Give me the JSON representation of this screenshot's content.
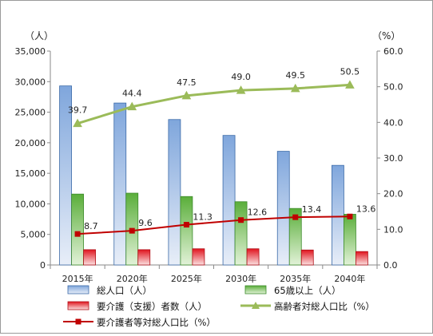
{
  "chart_data": {
    "type": "bar",
    "categories": [
      "2015年",
      "2020年",
      "2025年",
      "2030年",
      "2035年",
      "2040年"
    ],
    "left_axis": {
      "unit_label": "（人）",
      "ylim": [
        0,
        35000
      ],
      "ticks": [
        "0",
        "5,000",
        "10,000",
        "15,000",
        "20,000",
        "25,000",
        "30,000",
        "35,000"
      ]
    },
    "right_axis": {
      "unit_label": "（%）",
      "ylim": [
        0,
        60
      ],
      "ticks": [
        "0.0",
        "10.0",
        "20.0",
        "30.0",
        "40.0",
        "50.0",
        "60.0"
      ]
    },
    "grid": false,
    "legend_position": "bottom",
    "series": [
      {
        "name": "総人口（人）",
        "type": "bar",
        "axis": "left",
        "color": "#4f81bd",
        "values": [
          29300,
          26500,
          23800,
          21200,
          18600,
          16300
        ]
      },
      {
        "name": "65歳以上（人）",
        "type": "bar",
        "axis": "left",
        "color": "#4ea72e",
        "values": [
          11600,
          11750,
          11200,
          10350,
          9250,
          8300
        ]
      },
      {
        "name": "要介護（支援）者数（人）",
        "type": "bar",
        "axis": "left",
        "color": "#e0141e",
        "values": [
          2500,
          2500,
          2650,
          2650,
          2450,
          2200
        ]
      },
      {
        "name": "高齢者対総人口比（%）",
        "type": "line",
        "axis": "right",
        "color": "#9bbb59",
        "marker": "triangle",
        "values": [
          39.7,
          44.4,
          47.5,
          49.0,
          49.5,
          50.5
        ],
        "labels": [
          "39.7",
          "44.4",
          "47.5",
          "49.0",
          "49.5",
          "50.5"
        ]
      },
      {
        "name": "要介護者等対総人口比（%）",
        "type": "line",
        "axis": "right",
        "color": "#c00000",
        "marker": "square",
        "values": [
          8.7,
          9.6,
          11.3,
          12.6,
          13.4,
          13.6
        ],
        "labels": [
          "8.7",
          "9.6",
          "11.3",
          "12.6",
          "13.4",
          "13.6"
        ]
      }
    ]
  }
}
